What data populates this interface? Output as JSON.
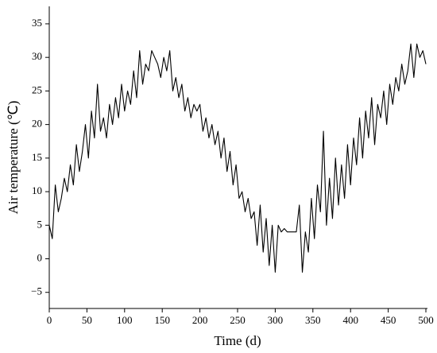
{
  "chart_data": {
    "type": "line",
    "x_label": "Time (d)",
    "y_label": "Air temperature (℃)",
    "x": [
      0,
      4,
      8,
      12,
      16,
      20,
      24,
      28,
      32,
      36,
      40,
      44,
      48,
      52,
      56,
      60,
      64,
      68,
      72,
      76,
      80,
      84,
      88,
      92,
      96,
      100,
      104,
      108,
      112,
      116,
      120,
      124,
      128,
      132,
      136,
      140,
      144,
      148,
      152,
      156,
      160,
      164,
      168,
      172,
      176,
      180,
      184,
      188,
      192,
      196,
      200,
      204,
      208,
      212,
      216,
      220,
      224,
      228,
      232,
      236,
      240,
      244,
      248,
      252,
      256,
      260,
      264,
      268,
      272,
      276,
      280,
      284,
      288,
      292,
      296,
      300,
      304,
      308,
      312,
      316,
      320,
      324,
      328,
      332,
      336,
      340,
      344,
      348,
      352,
      356,
      360,
      364,
      368,
      372,
      376,
      380,
      384,
      388,
      392,
      396,
      400,
      404,
      408,
      412,
      416,
      420,
      424,
      428,
      432,
      436,
      440,
      444,
      448,
      452,
      456,
      460,
      464,
      468,
      472,
      476,
      480,
      484,
      488,
      492,
      496,
      500
    ],
    "series": [
      {
        "color": "#000000",
        "values": [
          5,
          3,
          11,
          7,
          9,
          12,
          10,
          14,
          11,
          17,
          13,
          16,
          20,
          15,
          22,
          18,
          26,
          19,
          21,
          18,
          23,
          20,
          24,
          21,
          26,
          22,
          25,
          23,
          28,
          24,
          31,
          26,
          29,
          28,
          31,
          30,
          29,
          27,
          30,
          28,
          31,
          25,
          27,
          24,
          26,
          22,
          24,
          21,
          23,
          22,
          23,
          19,
          21,
          18,
          20,
          17,
          19,
          15,
          18,
          13,
          16,
          11,
          14,
          9,
          10,
          7,
          9,
          6,
          7,
          2,
          8,
          1,
          6,
          -1,
          5,
          -2,
          5,
          4,
          4.5,
          4,
          4,
          4,
          4,
          8,
          -2,
          4,
          1,
          9,
          3,
          11,
          7,
          19,
          5,
          12,
          6,
          15,
          8,
          14,
          9,
          17,
          11,
          18,
          14,
          21,
          15,
          22,
          18,
          24,
          17,
          23,
          21,
          25,
          20,
          26,
          23,
          27,
          25,
          29,
          26,
          28,
          32,
          27,
          32,
          30,
          31,
          29
        ]
      }
    ],
    "xlim": [
      0,
      500
    ],
    "ylim": [
      -7.4,
      37.6
    ],
    "xticks": [
      0,
      50,
      100,
      150,
      200,
      250,
      300,
      350,
      400,
      450,
      500
    ],
    "yticks": [
      {
        "value": -5,
        "label": "−5"
      },
      0,
      5,
      10,
      15,
      20,
      25,
      30,
      35
    ]
  }
}
